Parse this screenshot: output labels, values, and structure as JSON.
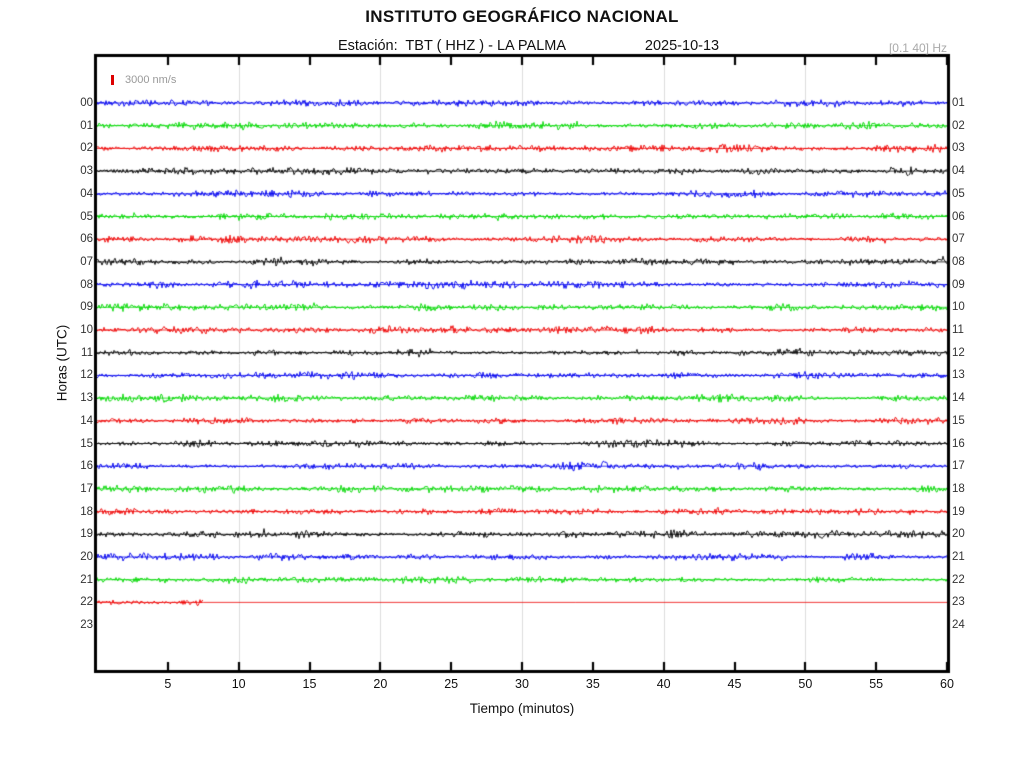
{
  "header": {
    "title": "INSTITUTO GEOGRÁFICO NACIONAL",
    "station_line": "Estación:  TBT ( HHZ ) - LA PALMA",
    "date": "2025-10-13",
    "filter_band": "[0.1 40] Hz"
  },
  "legend": {
    "scale_marker_icon": "red-scale-bar-icon",
    "scale_marker_color": "#dd0000",
    "scale_label": "3000 nm/s"
  },
  "axes": {
    "x_label": "Tiempo (minutos)",
    "y_label": "Horas (UTC)"
  },
  "colors": {
    "trace_blue": "#0000ee",
    "trace_green": "#00d800",
    "trace_red": "#ee0000",
    "trace_black": "#000000",
    "gridline": "#dcdcdc",
    "frame": "#000000",
    "muted_text": "#999999"
  },
  "chart_data": {
    "type": "line",
    "subtype": "helicorder-seismogram",
    "title": "INSTITUTO GEOGRÁFICO NACIONAL",
    "subtitle": "Estación: TBT ( HHZ ) - LA PALMA — 2025-10-13",
    "xlabel": "Tiempo (minutos)",
    "ylabel": "Horas (UTC)",
    "xlim": [
      0,
      60
    ],
    "x_ticks": [
      5,
      10,
      15,
      20,
      25,
      30,
      35,
      40,
      45,
      50,
      55,
      60
    ],
    "x_gridlines": [
      10,
      20,
      30,
      40,
      50
    ],
    "grid": "vertical gridlines only, light gray",
    "legend_position": "top-left inside plot",
    "amplitude_scale": "3000 nm/s per trace-height reference",
    "signal_description": "continuous low-amplitude background seismic noise on all recorded traces; no visible events",
    "rows": [
      {
        "left_label": "00",
        "right_label": "01",
        "color": "#0000ee",
        "data_start_min": 0,
        "data_end_min": 60
      },
      {
        "left_label": "01",
        "right_label": "02",
        "color": "#00d800",
        "data_start_min": 0,
        "data_end_min": 60
      },
      {
        "left_label": "02",
        "right_label": "03",
        "color": "#ee0000",
        "data_start_min": 0,
        "data_end_min": 60
      },
      {
        "left_label": "03",
        "right_label": "04",
        "color": "#000000",
        "data_start_min": 0,
        "data_end_min": 60
      },
      {
        "left_label": "04",
        "right_label": "05",
        "color": "#0000ee",
        "data_start_min": 0,
        "data_end_min": 60
      },
      {
        "left_label": "05",
        "right_label": "06",
        "color": "#00d800",
        "data_start_min": 0,
        "data_end_min": 60
      },
      {
        "left_label": "06",
        "right_label": "07",
        "color": "#ee0000",
        "data_start_min": 0,
        "data_end_min": 60
      },
      {
        "left_label": "07",
        "right_label": "08",
        "color": "#000000",
        "data_start_min": 0,
        "data_end_min": 60
      },
      {
        "left_label": "08",
        "right_label": "09",
        "color": "#0000ee",
        "data_start_min": 0,
        "data_end_min": 60
      },
      {
        "left_label": "09",
        "right_label": "10",
        "color": "#00d800",
        "data_start_min": 0,
        "data_end_min": 60
      },
      {
        "left_label": "10",
        "right_label": "11",
        "color": "#ee0000",
        "data_start_min": 0,
        "data_end_min": 60
      },
      {
        "left_label": "11",
        "right_label": "12",
        "color": "#000000",
        "data_start_min": 0,
        "data_end_min": 60
      },
      {
        "left_label": "12",
        "right_label": "13",
        "color": "#0000ee",
        "data_start_min": 0,
        "data_end_min": 60
      },
      {
        "left_label": "13",
        "right_label": "14",
        "color": "#00d800",
        "data_start_min": 0,
        "data_end_min": 60
      },
      {
        "left_label": "14",
        "right_label": "15",
        "color": "#ee0000",
        "data_start_min": 0,
        "data_end_min": 60
      },
      {
        "left_label": "15",
        "right_label": "16",
        "color": "#000000",
        "data_start_min": 0,
        "data_end_min": 60
      },
      {
        "left_label": "16",
        "right_label": "17",
        "color": "#0000ee",
        "data_start_min": 0,
        "data_end_min": 60
      },
      {
        "left_label": "17",
        "right_label": "18",
        "color": "#00d800",
        "data_start_min": 0,
        "data_end_min": 60
      },
      {
        "left_label": "18",
        "right_label": "19",
        "color": "#ee0000",
        "data_start_min": 0,
        "data_end_min": 60
      },
      {
        "left_label": "19",
        "right_label": "20",
        "color": "#000000",
        "data_start_min": 0,
        "data_end_min": 60
      },
      {
        "left_label": "20",
        "right_label": "21",
        "color": "#0000ee",
        "data_start_min": 0,
        "data_end_min": 60
      },
      {
        "left_label": "21",
        "right_label": "22",
        "color": "#00d800",
        "data_start_min": 0,
        "data_end_min": 60
      },
      {
        "left_label": "22",
        "right_label": "23",
        "color": "#ee0000",
        "data_start_min": 0,
        "data_end_min": 7.5,
        "flat_line_to_min": 60,
        "note": "recording stops ~7.5 min; thin flat line for rest of hour"
      },
      {
        "left_label": "23",
        "right_label": "24",
        "color": null,
        "data_start_min": 0,
        "data_end_min": 0,
        "note": "no data"
      }
    ]
  }
}
